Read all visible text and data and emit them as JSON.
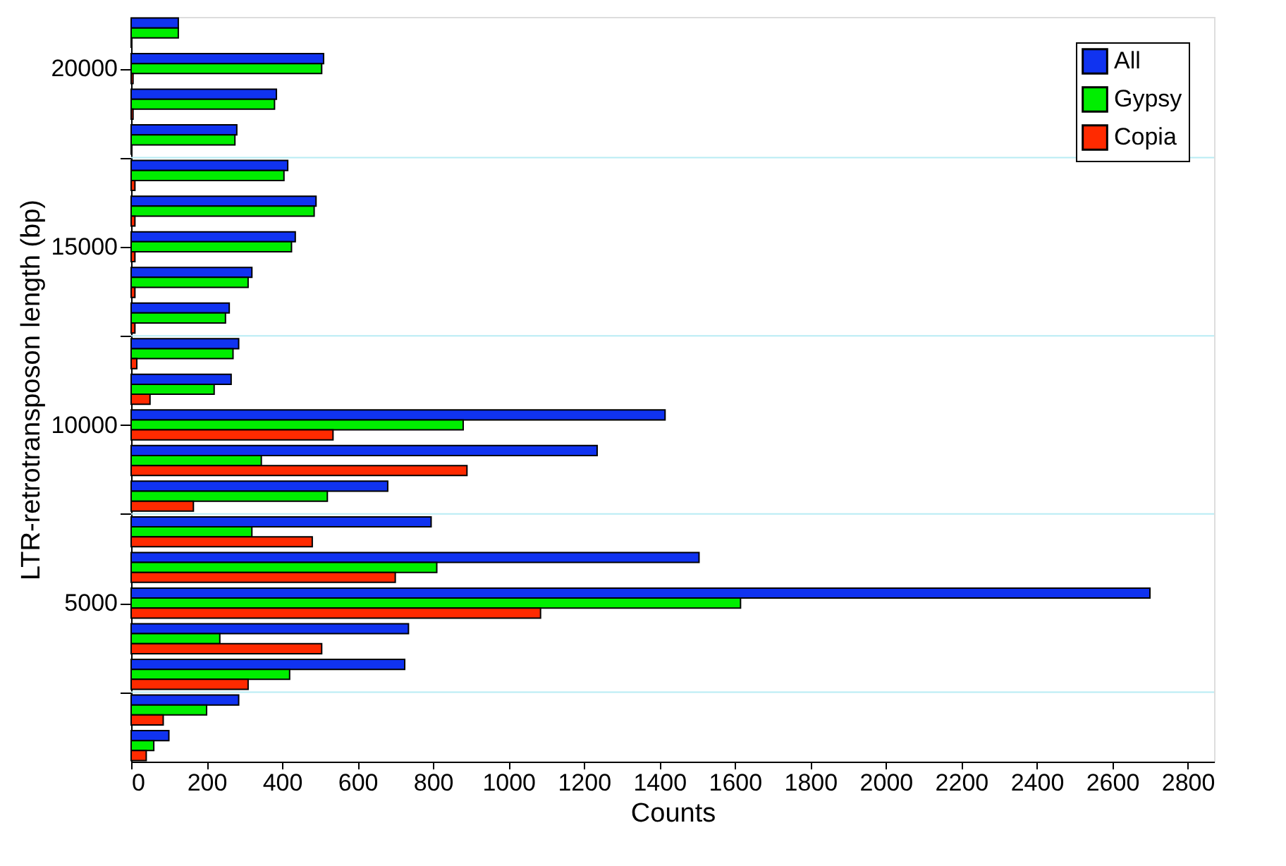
{
  "chart_data": {
    "type": "bar",
    "orientation": "horizontal",
    "xlabel": "Counts",
    "ylabel": "LTR-retrotransposon length (bp)",
    "x": [
      1000,
      2000,
      3000,
      4000,
      5000,
      6000,
      7000,
      8000,
      9000,
      10000,
      11000,
      12000,
      13000,
      14000,
      15000,
      16000,
      17000,
      18000,
      19000,
      20000,
      21000
    ],
    "series": [
      {
        "name": "All",
        "color": "#1033f0",
        "values": [
          100,
          285,
          725,
          735,
          2700,
          1505,
          795,
          680,
          1235,
          1415,
          265,
          285,
          260,
          320,
          435,
          490,
          415,
          280,
          385,
          510,
          125
        ]
      },
      {
        "name": "Gypsy",
        "color": "#00ee00",
        "values": [
          60,
          200,
          420,
          235,
          1615,
          810,
          320,
          520,
          345,
          880,
          220,
          270,
          250,
          310,
          425,
          485,
          405,
          275,
          380,
          505,
          125
        ]
      },
      {
        "name": "Copia",
        "color": "#ff2a00",
        "values": [
          40,
          85,
          310,
          505,
          1085,
          700,
          480,
          165,
          890,
          535,
          50,
          15,
          10,
          10,
          10,
          10,
          10,
          0,
          5,
          5,
          0
        ]
      }
    ],
    "xlim": [
      0,
      2870
    ],
    "xticks": [
      0,
      200,
      400,
      600,
      800,
      1000,
      1200,
      1400,
      1600,
      1800,
      2000,
      2200,
      2400,
      2600,
      2800
    ],
    "ylim": [
      550,
      21450
    ],
    "yticks": [
      {
        "value": 2500,
        "label": null
      },
      5000,
      {
        "value": 7500,
        "label": null
      },
      10000,
      {
        "value": 12500,
        "label": null
      },
      15000,
      {
        "value": 17500,
        "label": null
      },
      20000
    ],
    "ref_lines": [
      {
        "axis": "y",
        "value": 2500,
        "color": "#b8ecf4"
      },
      {
        "axis": "y",
        "value": 7500,
        "color": "#b8ecf4"
      },
      {
        "axis": "y",
        "value": 12500,
        "color": "#b8ecf4"
      },
      {
        "axis": "y",
        "value": 17500,
        "color": "#b8ecf4"
      }
    ],
    "legend": "top right",
    "grid": false
  }
}
